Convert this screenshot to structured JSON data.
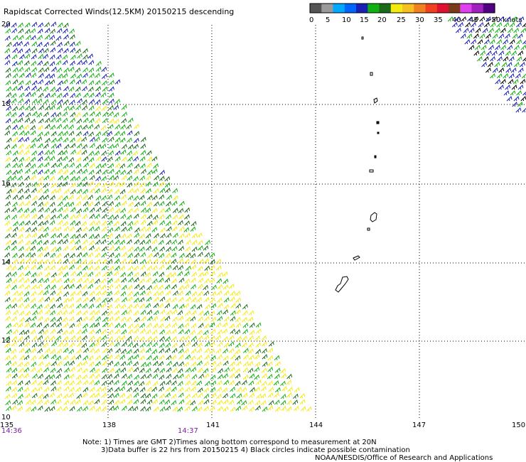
{
  "title": "Rapidscat Corrected Winds(12.5KM) 20150215 descending",
  "colorbar": {
    "colors": [
      "#555555",
      "#9a9a9a",
      "#00a8ff",
      "#0064ff",
      "#1a20b4",
      "#10b010",
      "#1a6a1a",
      "#f5ea10",
      "#f7c020",
      "#f08020",
      "#f04020",
      "#e01030",
      "#7a3c18",
      "#e040f0",
      "#a020c0",
      "#500080"
    ],
    "ticks": [
      "0",
      "5",
      "10",
      "15",
      "20",
      "25",
      "30",
      "35",
      "40",
      "45",
      ">50 knots"
    ]
  },
  "x_ticks": [
    "135",
    "138",
    "141",
    "144",
    "147",
    "150"
  ],
  "y_ticks": [
    "20",
    "18",
    "16",
    "14",
    "12",
    "10"
  ],
  "x_range": [
    135,
    150
  ],
  "y_range": [
    10,
    20
  ],
  "times": [
    "14:36",
    "14:37"
  ],
  "notes": [
    "Note: 1) Times are GMT 2)Times along bottom correspond to measurement at 20N",
    "3)Data buffer is 22 hrs from 20150215 4) Black circles indicate possible contamination",
    "NOAA/NESDIS/Office of Research and Applications"
  ]
}
